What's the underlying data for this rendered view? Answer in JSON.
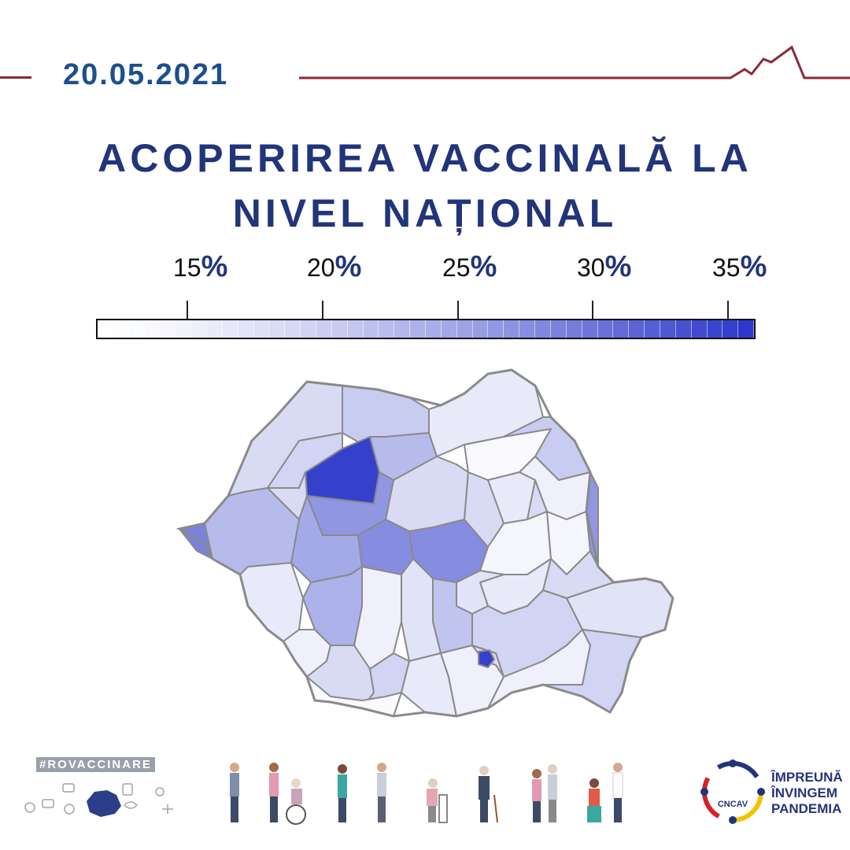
{
  "header": {
    "date": "20.05.2021",
    "title_line1": "ACOPERIREA VACCINALĂ LA",
    "title_line2": "NIVEL NAȚIONAL"
  },
  "legend": {
    "ticks": [
      {
        "number": "15",
        "unit": "%"
      },
      {
        "number": "20",
        "unit": "%"
      },
      {
        "number": "25",
        "unit": "%"
      },
      {
        "number": "30",
        "unit": "%"
      },
      {
        "number": "35",
        "unit": "%"
      }
    ],
    "range": [
      12.5,
      36
    ],
    "color_low": "#ffffff",
    "color_high": "#2a35c8"
  },
  "map": {
    "counties": [
      {
        "coverage": 19
      },
      {
        "coverage": 21
      },
      {
        "coverage": 35
      },
      {
        "coverage": 20
      },
      {
        "coverage": 23
      },
      {
        "coverage": 17
      },
      {
        "coverage": 14
      },
      {
        "coverage": 21
      },
      {
        "coverage": 19
      },
      {
        "coverage": 27
      },
      {
        "coverage": 25
      },
      {
        "coverage": 28
      },
      {
        "coverage": 28
      },
      {
        "coverage": 19
      },
      {
        "coverage": 16
      },
      {
        "coverage": 15
      },
      {
        "coverage": 15
      },
      {
        "coverage": 19
      },
      {
        "coverage": 17
      },
      {
        "coverage": 18
      },
      {
        "coverage": 22
      },
      {
        "coverage": 18
      },
      {
        "coverage": 16
      },
      {
        "coverage": 24
      },
      {
        "coverage": 17
      },
      {
        "coverage": 16
      },
      {
        "coverage": 19
      },
      {
        "coverage": 20
      },
      {
        "coverage": 23
      },
      {
        "coverage": 19
      },
      {
        "coverage": 17
      },
      {
        "coverage": 16
      },
      {
        "coverage": 20
      },
      {
        "coverage": 16
      },
      {
        "coverage": 18
      },
      {
        "coverage": 20
      },
      {
        "coverage": 19
      },
      {
        "coverage": 14
      },
      {
        "coverage": 17
      },
      {
        "coverage": 27
      },
      {
        "coverage": 29
      },
      {
        "coverage": 35
      }
    ]
  },
  "footer": {
    "hashtag": "#ROVACCINARE",
    "logo_abbr": "CNCAV",
    "slogan_line1": "ÎMPREUNĂ",
    "slogan_line2": "ÎNVINGEM",
    "slogan_line3": "PANDEMIA"
  },
  "colors": {
    "title": "#22357a",
    "date": "#1d4f8c",
    "accent_line": "#8b2a3a",
    "border": "#8a8a8a"
  }
}
